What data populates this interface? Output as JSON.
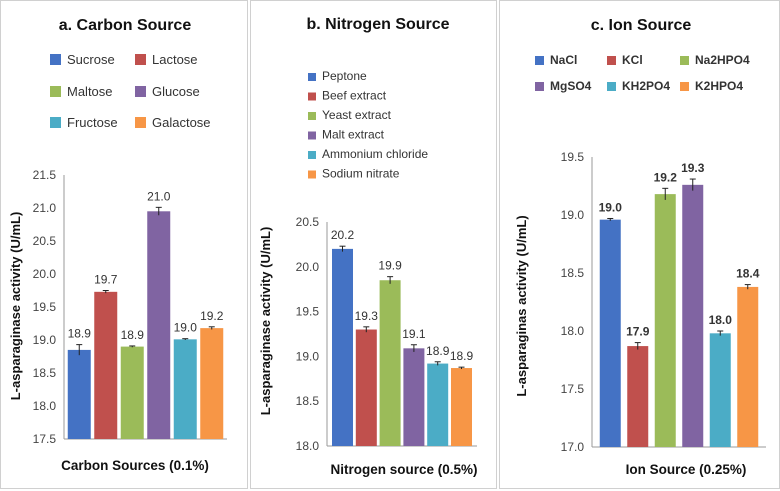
{
  "chart_data": [
    {
      "type": "bar",
      "title": "a. Carbon Source",
      "xlabel": "Carbon Sources (0.1%)",
      "ylabel": "L-asparaginase activity (U/mL)",
      "ylim": [
        17.5,
        21.5
      ],
      "yticks": [
        "17.5",
        "18.0",
        "18.5",
        "19.0",
        "19.5",
        "20.0",
        "20.5",
        "21.0",
        "21.5"
      ],
      "legend_position": "top",
      "categories": [
        "Sucrose",
        "Lactose",
        "Maltose",
        "Glucose",
        "Fructose",
        "Galactose"
      ],
      "values": [
        18.85,
        19.73,
        18.9,
        20.95,
        19.01,
        19.18
      ],
      "errors": [
        0.08,
        0.02,
        0.01,
        0.06,
        0.01,
        0.02
      ],
      "labels": [
        "18.9",
        "19.7",
        "18.9",
        "21.0",
        "19.0",
        "19.2"
      ],
      "colors": [
        "#4472c4",
        "#c0504d",
        "#9bbb59",
        "#8064a2",
        "#4bacc6",
        "#f79646"
      ]
    },
    {
      "type": "bar",
      "title": "b. Nitrogen Source",
      "xlabel": "Nitrogen source (0.5%)",
      "ylabel": "L-asparaginase activity (U/mL)",
      "ylim": [
        18.0,
        20.5
      ],
      "yticks": [
        "18.0",
        "18.5",
        "19.0",
        "19.5",
        "20.0",
        "20.5"
      ],
      "legend_position": "top",
      "categories": [
        "Peptone",
        "Beef extract",
        "Yeast extract",
        "Malt extract",
        "Ammonium chloride",
        "Sodium nitrate"
      ],
      "values": [
        20.2,
        19.3,
        19.85,
        19.09,
        18.92,
        18.87
      ],
      "errors": [
        0.03,
        0.03,
        0.04,
        0.04,
        0.02,
        0.01
      ],
      "labels": [
        "20.2",
        "19.3",
        "19.9",
        "19.1",
        "18.9",
        "18.9"
      ],
      "colors": [
        "#4472c4",
        "#c0504d",
        "#9bbb59",
        "#8064a2",
        "#4bacc6",
        "#f79646"
      ]
    },
    {
      "type": "bar",
      "title": "c. Ion Source",
      "xlabel": "Ion Source (0.25%)",
      "ylabel": "L-asparaginas activity (U/mL)",
      "ylim": [
        17.0,
        19.5
      ],
      "yticks": [
        "17.0",
        "17.5",
        "18.0",
        "18.5",
        "19.0",
        "19.5"
      ],
      "legend_position": "top",
      "categories": [
        "NaCl",
        "KCl",
        "Na2HPO4",
        "MgSO4",
        "KH2PO4",
        "K2HPO4"
      ],
      "values": [
        18.96,
        17.87,
        19.18,
        19.26,
        17.98,
        18.38
      ],
      "errors": [
        0.01,
        0.03,
        0.05,
        0.05,
        0.02,
        0.02
      ],
      "labels": [
        "19.0",
        "17.9",
        "19.2",
        "19.3",
        "18.0",
        "18.4"
      ],
      "colors": [
        "#4472c4",
        "#c0504d",
        "#9bbb59",
        "#8064a2",
        "#4bacc6",
        "#f79646"
      ]
    }
  ]
}
